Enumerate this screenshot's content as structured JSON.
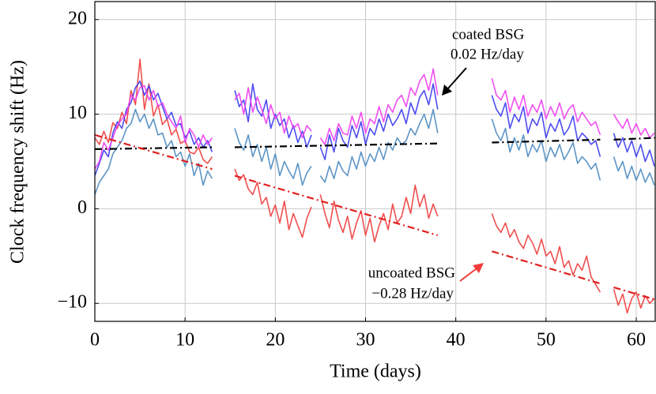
{
  "chart_data": {
    "type": "line",
    "xlabel": "Time (days)",
    "ylabel": "Clock frequency shift (Hz)",
    "xlim": [
      0,
      62.1
    ],
    "ylim": [
      -11.9,
      21.9
    ],
    "xticks": [
      0,
      10,
      20,
      30,
      40,
      50,
      60
    ],
    "yticks": [
      {
        "value": -10,
        "label": "−10"
      },
      0,
      10,
      20
    ],
    "grid": true,
    "x": [
      0,
      0.5,
      1,
      1.5,
      2,
      2.5,
      3,
      3.5,
      4,
      4.5,
      5,
      5.5,
      6,
      6.5,
      7,
      7.5,
      8,
      8.5,
      9,
      9.5,
      10,
      10.5,
      11,
      11.5,
      12,
      12.5,
      13,
      13.5,
      14,
      14.5,
      15,
      15.5,
      16,
      16.5,
      17,
      17.5,
      18,
      18.5,
      19,
      19.5,
      20,
      20.5,
      21,
      21.5,
      22,
      22.5,
      23,
      23.5,
      24,
      24.5,
      25,
      25.5,
      26,
      26.5,
      27,
      27.5,
      28,
      28.5,
      29,
      29.5,
      30,
      30.5,
      31,
      31.5,
      32,
      32.5,
      33,
      33.5,
      34,
      34.5,
      35,
      35.5,
      36,
      36.5,
      37,
      37.5,
      38,
      38.5,
      39,
      39.5,
      40,
      40.5,
      41,
      41.5,
      42,
      42.5,
      43,
      43.5,
      44,
      44.5,
      45,
      45.5,
      46,
      46.5,
      47,
      47.5,
      48,
      48.5,
      49,
      49.5,
      50,
      50.5,
      51,
      51.5,
      52,
      52.5,
      53,
      53.5,
      54,
      54.5,
      55,
      55.5,
      56,
      56.5,
      57,
      57.5,
      58,
      58.5,
      59,
      59.5,
      60,
      60.5,
      61,
      61.5,
      62
    ],
    "series": [
      {
        "color": "#f03c3c",
        "values": [
          7.5,
          6.8,
          8.2,
          7.0,
          9.1,
          8.5,
          10.2,
          9.0,
          12.5,
          11.0,
          15.8,
          10.5,
          13.2,
          9.8,
          11.0,
          8.9,
          9.5,
          7.8,
          8.4,
          6.9,
          7.2,
          6.0,
          5.8,
          6.5,
          5.2,
          4.8,
          5.5,
          null,
          null,
          null,
          null,
          4.2,
          3.0,
          3.6,
          2.1,
          1.5,
          2.8,
          0.5,
          1.2,
          -0.8,
          0.4,
          -1.5,
          0.8,
          -2.2,
          -0.5,
          -1.8,
          -3.0,
          -1.0,
          0.2,
          null,
          1.5,
          -0.5,
          -2.0,
          0.8,
          -1.2,
          -2.5,
          -0.8,
          -3.2,
          -1.5,
          -0.2,
          -2.8,
          -1.0,
          -3.5,
          -1.8,
          -0.5,
          -2.2,
          0.5,
          -1.5,
          -0.8,
          1.2,
          -0.5,
          2.5,
          0.2,
          1.5,
          -1.0,
          0.5,
          -0.8,
          null,
          null,
          null,
          null,
          null,
          null,
          null,
          null,
          null,
          null,
          null,
          -0.5,
          -1.8,
          -2.5,
          -1.5,
          -3.0,
          -2.2,
          -3.5,
          -4.2,
          -2.8,
          -3.6,
          -4.8,
          -3.2,
          -5.0,
          -4.5,
          -5.8,
          -4.0,
          -6.2,
          -5.5,
          -7.0,
          -5.8,
          -6.5,
          -5.0,
          -7.2,
          -8.0,
          -8.8,
          null,
          null,
          -8.5,
          -10.2,
          -9.0,
          -11.0,
          -9.5,
          -8.8,
          -10.5,
          -9.2,
          -10.0,
          -9.5
        ]
      },
      {
        "color": "#4a8ac0",
        "values": [
          1.5,
          2.8,
          3.5,
          4.2,
          5.8,
          6.5,
          7.2,
          8.5,
          9.0,
          10.5,
          9.2,
          10.0,
          8.5,
          9.5,
          7.8,
          8.0,
          6.5,
          7.2,
          5.5,
          6.0,
          4.5,
          5.8,
          3.5,
          4.8,
          2.5,
          4.0,
          3.2,
          null,
          null,
          null,
          null,
          8.5,
          7.0,
          6.2,
          7.8,
          5.5,
          6.8,
          5.0,
          6.5,
          4.2,
          5.8,
          3.5,
          5.0,
          4.0,
          3.2,
          4.8,
          2.5,
          3.8,
          4.5,
          null,
          3.5,
          2.8,
          4.5,
          3.2,
          5.0,
          4.0,
          3.5,
          5.5,
          4.2,
          6.0,
          4.5,
          5.8,
          5.0,
          6.5,
          5.2,
          7.0,
          6.2,
          7.5,
          6.8,
          7.2,
          8.5,
          7.8,
          9.0,
          10.0,
          8.5,
          10.5,
          8.0,
          null,
          null,
          null,
          null,
          null,
          null,
          null,
          null,
          null,
          null,
          null,
          9.5,
          8.0,
          7.2,
          8.5,
          6.0,
          7.5,
          6.2,
          7.8,
          5.5,
          6.8,
          6.0,
          7.2,
          5.0,
          6.5,
          5.5,
          6.8,
          5.2,
          6.0,
          7.0,
          4.8,
          5.5,
          5.0,
          4.2,
          4.8,
          3.0,
          null,
          null,
          5.5,
          4.0,
          5.0,
          3.2,
          4.5,
          3.0,
          4.2,
          2.8,
          3.8,
          2.5
        ]
      },
      {
        "color": "#3a3af0",
        "values": [
          3.5,
          4.8,
          6.2,
          5.5,
          8.0,
          9.2,
          8.5,
          10.5,
          11.2,
          12.8,
          13.5,
          12.0,
          13.0,
          11.5,
          12.2,
          10.8,
          9.5,
          10.2,
          8.8,
          9.0,
          7.5,
          8.2,
          6.8,
          7.5,
          6.5,
          7.2,
          6.0,
          null,
          null,
          null,
          null,
          12.5,
          10.8,
          11.5,
          9.2,
          13.2,
          10.5,
          9.8,
          11.5,
          8.5,
          10.0,
          8.8,
          9.5,
          7.5,
          8.8,
          7.0,
          8.2,
          6.5,
          7.8,
          null,
          6.5,
          5.2,
          7.8,
          6.0,
          8.5,
          7.2,
          6.5,
          8.8,
          7.5,
          9.2,
          6.8,
          8.5,
          7.8,
          9.5,
          8.2,
          10.0,
          8.8,
          9.5,
          10.5,
          9.0,
          11.2,
          10.0,
          11.8,
          12.5,
          11.0,
          13.2,
          10.5,
          null,
          null,
          null,
          null,
          null,
          null,
          null,
          null,
          null,
          null,
          null,
          12.0,
          10.5,
          9.8,
          11.2,
          8.5,
          10.0,
          9.2,
          10.8,
          8.0,
          9.5,
          8.8,
          10.2,
          7.5,
          9.0,
          8.2,
          9.5,
          7.8,
          8.5,
          9.8,
          7.2,
          8.0,
          7.5,
          6.8,
          7.2,
          5.5,
          null,
          null,
          8.0,
          6.5,
          7.5,
          6.0,
          7.2,
          5.5,
          6.8,
          5.0,
          6.2,
          4.5
        ]
      },
      {
        "color": "#f03cf0",
        "values": [
          4.2,
          5.0,
          7.0,
          6.2,
          7.5,
          8.8,
          9.5,
          10.0,
          12.0,
          11.5,
          12.8,
          13.0,
          11.5,
          12.5,
          10.8,
          11.2,
          10.0,
          9.2,
          8.5,
          9.8,
          7.0,
          8.5,
          7.8,
          6.5,
          7.8,
          6.8,
          7.5,
          null,
          null,
          null,
          null,
          11.5,
          12.2,
          10.0,
          12.8,
          10.2,
          11.8,
          10.5,
          9.0,
          11.0,
          9.5,
          10.2,
          8.0,
          9.8,
          8.5,
          9.0,
          7.5,
          8.8,
          8.2,
          null,
          7.5,
          6.8,
          8.5,
          7.2,
          9.0,
          8.0,
          7.8,
          9.8,
          8.5,
          10.2,
          8.0,
          9.5,
          9.0,
          10.8,
          9.2,
          11.0,
          10.2,
          11.5,
          12.0,
          10.8,
          12.8,
          12.0,
          13.5,
          14.2,
          12.5,
          14.8,
          12.0,
          null,
          null,
          null,
          null,
          null,
          null,
          null,
          null,
          null,
          null,
          null,
          13.8,
          12.0,
          11.5,
          12.5,
          10.2,
          11.8,
          10.5,
          12.0,
          9.8,
          11.0,
          10.2,
          11.5,
          9.5,
          10.8,
          9.8,
          11.2,
          9.5,
          10.5,
          11.0,
          9.2,
          10.2,
          9.5,
          8.8,
          9.2,
          7.8,
          null,
          null,
          10.0,
          9.2,
          8.5,
          9.5,
          8.0,
          9.0,
          7.8,
          8.5,
          7.5,
          8.0
        ]
      }
    ],
    "fits": [
      {
        "color": "#000000",
        "x": [
          0,
          13,
          14,
          15.5,
          38,
          41,
          44,
          56,
          57,
          57.5,
          62.1
        ],
        "values": [
          6.3,
          6.5,
          null,
          6.5,
          6.9,
          null,
          7.0,
          7.3,
          null,
          7.3,
          7.5
        ]
      },
      {
        "color": "#e02020",
        "x": [
          0,
          13,
          14,
          15.5,
          38,
          41,
          44,
          56,
          57,
          57.5,
          62.1
        ],
        "values": [
          7.8,
          4.2,
          null,
          3.5,
          -2.8,
          null,
          -4.5,
          -7.9,
          null,
          -8.3,
          -9.6
        ]
      }
    ],
    "annotations": [
      {
        "lines": [
          "coated BSG",
          "0.02 Hz/day"
        ],
        "color": "#000000"
      },
      {
        "lines": [
          "uncoated BSG",
          "−0.28 Hz/day"
        ],
        "color": "#f03c3c"
      }
    ]
  }
}
